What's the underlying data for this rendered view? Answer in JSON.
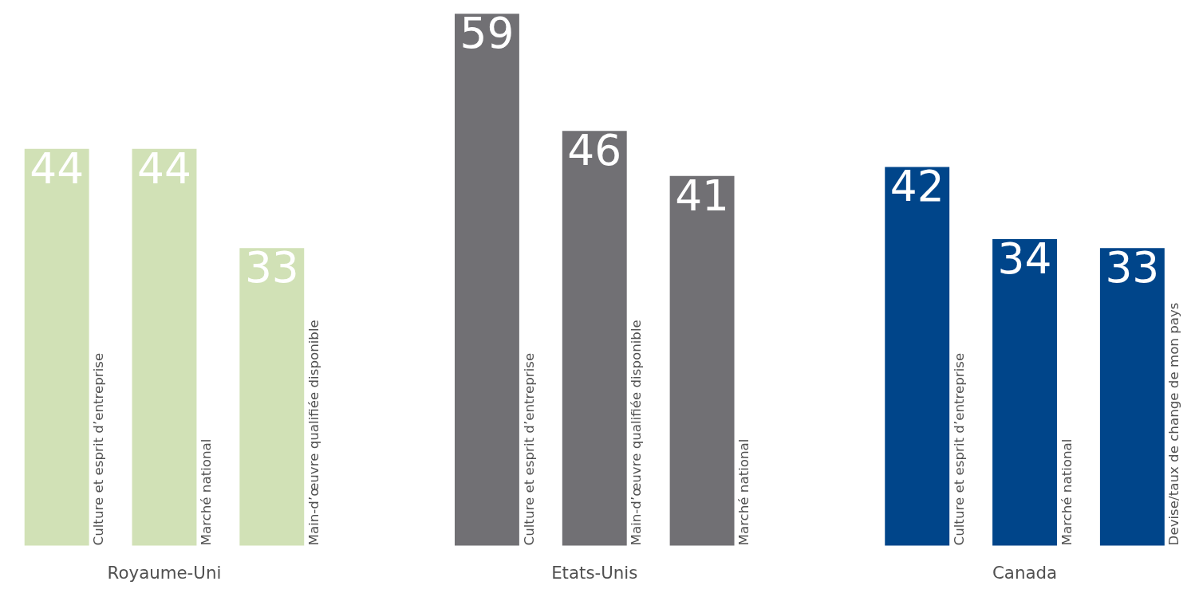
{
  "chart_data": {
    "type": "bar",
    "categories": [
      "Culture et esprit d’entreprise",
      "Marché national",
      "Main-d’œuvre qualifiée disponible",
      null,
      "Culture et esprit d’entreprise",
      "Main-d’œuvre qualifiée disponible",
      "Marché national",
      null,
      "Culture et esprit d’entreprise",
      "Marché national",
      "Devise/taux de change de mon pays"
    ],
    "values": [
      44,
      44,
      33,
      null,
      59,
      46,
      41,
      null,
      42,
      34,
      33
    ],
    "colors": [
      "#d1e1b6",
      "#d1e1b6",
      "#d1e1b6",
      null,
      "#717074",
      "#717074",
      "#717074",
      null,
      "#00458a",
      "#00458a",
      "#00458a"
    ],
    "data_labels": true,
    "annotations": [
      "Royaume-Uni",
      "Etats-Unis",
      "Canada"
    ]
  }
}
